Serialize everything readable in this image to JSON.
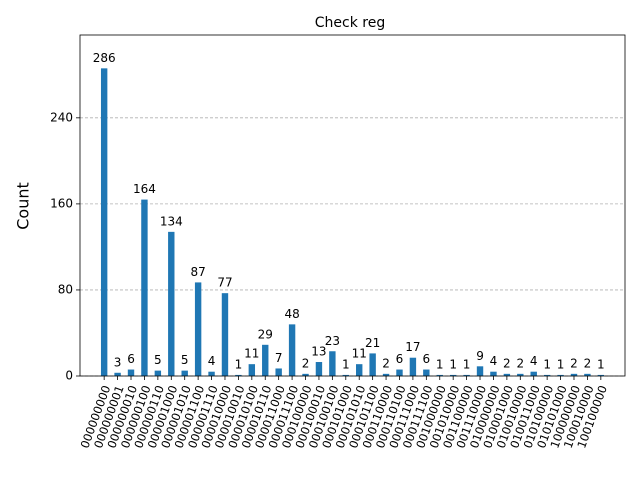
{
  "chart_data": {
    "type": "bar",
    "title": "Check reg",
    "y_label": "Count",
    "categories": [
      "000000000",
      "000000001",
      "000000010",
      "000000100",
      "000000110",
      "000001000",
      "000001010",
      "000001100",
      "000001110",
      "000010000",
      "000010010",
      "000010100",
      "000010110",
      "000011000",
      "000011100",
      "000100000",
      "000100010",
      "000100100",
      "000101000",
      "000101010",
      "000101100",
      "000110000",
      "000110100",
      "000111000",
      "000111100",
      "001000000",
      "001010000",
      "001100000",
      "001110000",
      "010000000",
      "010001000",
      "010010000",
      "010011000",
      "010100000",
      "010101000",
      "100000000",
      "100010000",
      "100100000"
    ],
    "values": [
      286,
      3,
      6,
      164,
      5,
      134,
      5,
      87,
      4,
      77,
      1,
      11,
      29,
      7,
      48,
      2,
      13,
      23,
      1,
      11,
      21,
      2,
      6,
      17,
      6,
      1,
      1,
      1,
      9,
      4,
      2,
      2,
      4,
      1,
      1,
      2,
      2,
      1
    ],
    "color": "#1f77b4",
    "ylim": [
      0,
      317
    ],
    "yticks": [
      0,
      80,
      160,
      240
    ],
    "grid": true
  }
}
